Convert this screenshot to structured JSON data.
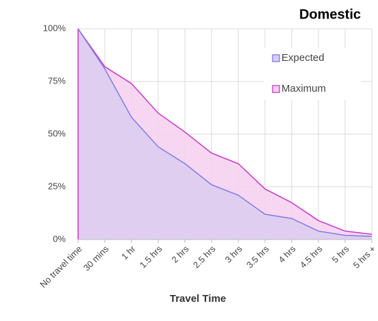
{
  "chart_data": {
    "type": "area",
    "title": "Domestic",
    "x_label": "Travel Time",
    "categories": [
      "No travel time",
      "30 mins",
      "1 hr",
      "1.5 hrs",
      "2 hrs",
      "2.5 hrs",
      "3 hrs",
      "3.5 hrs",
      "4 hrs",
      "4.5 hrs",
      "5 hrs",
      "5 hrs +"
    ],
    "series": [
      {
        "name": "Expected",
        "color": "#7b7be8",
        "fill": "#dccdf0",
        "values": [
          100,
          81,
          58,
          44,
          36,
          26,
          21,
          12,
          10,
          4,
          2,
          1.5
        ]
      },
      {
        "name": "Maximum",
        "color": "#cc33cc",
        "fill": "#f6d2f1",
        "values": [
          100,
          82,
          74,
          60,
          51,
          41,
          36,
          24,
          17.5,
          9,
          4,
          2.5
        ]
      }
    ],
    "ylim": [
      0,
      100
    ],
    "yticks": [
      {
        "value": 0,
        "label": "0%"
      },
      {
        "value": 25,
        "label": "25%"
      },
      {
        "value": 50,
        "label": "50%"
      },
      {
        "value": 75,
        "label": "75%"
      },
      {
        "value": 100,
        "label": "100%"
      }
    ],
    "grid": true,
    "legend": "upper right"
  }
}
